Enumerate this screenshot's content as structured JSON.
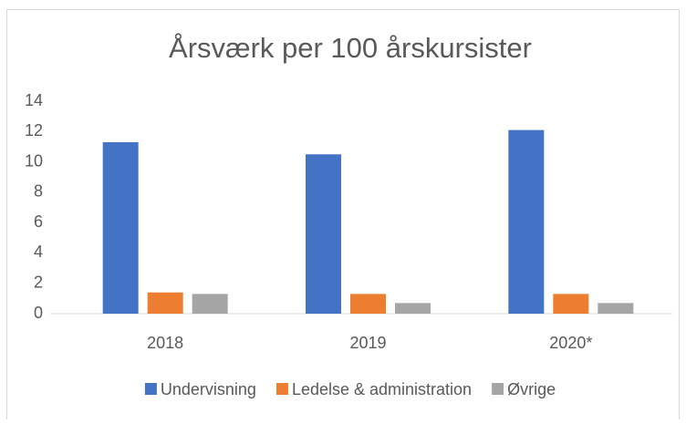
{
  "chart_data": {
    "type": "bar",
    "title": "Årsværk per 100 årskursister",
    "categories": [
      "2018",
      "2019",
      "2020*"
    ],
    "series": [
      {
        "name": "Undervisning",
        "color": "#4472c4",
        "values": [
          11.3,
          10.5,
          12.1
        ]
      },
      {
        "name": "Ledelse & administration",
        "color": "#ed7d31",
        "values": [
          1.4,
          1.3,
          1.3
        ]
      },
      {
        "name": "Øvrige",
        "color": "#a5a5a5",
        "values": [
          1.3,
          0.7,
          0.7
        ]
      }
    ],
    "ylim": [
      0,
      14
    ],
    "yticks": [
      0,
      2,
      4,
      6,
      8,
      10,
      12,
      14
    ],
    "grid": false,
    "legend": "bottom"
  }
}
